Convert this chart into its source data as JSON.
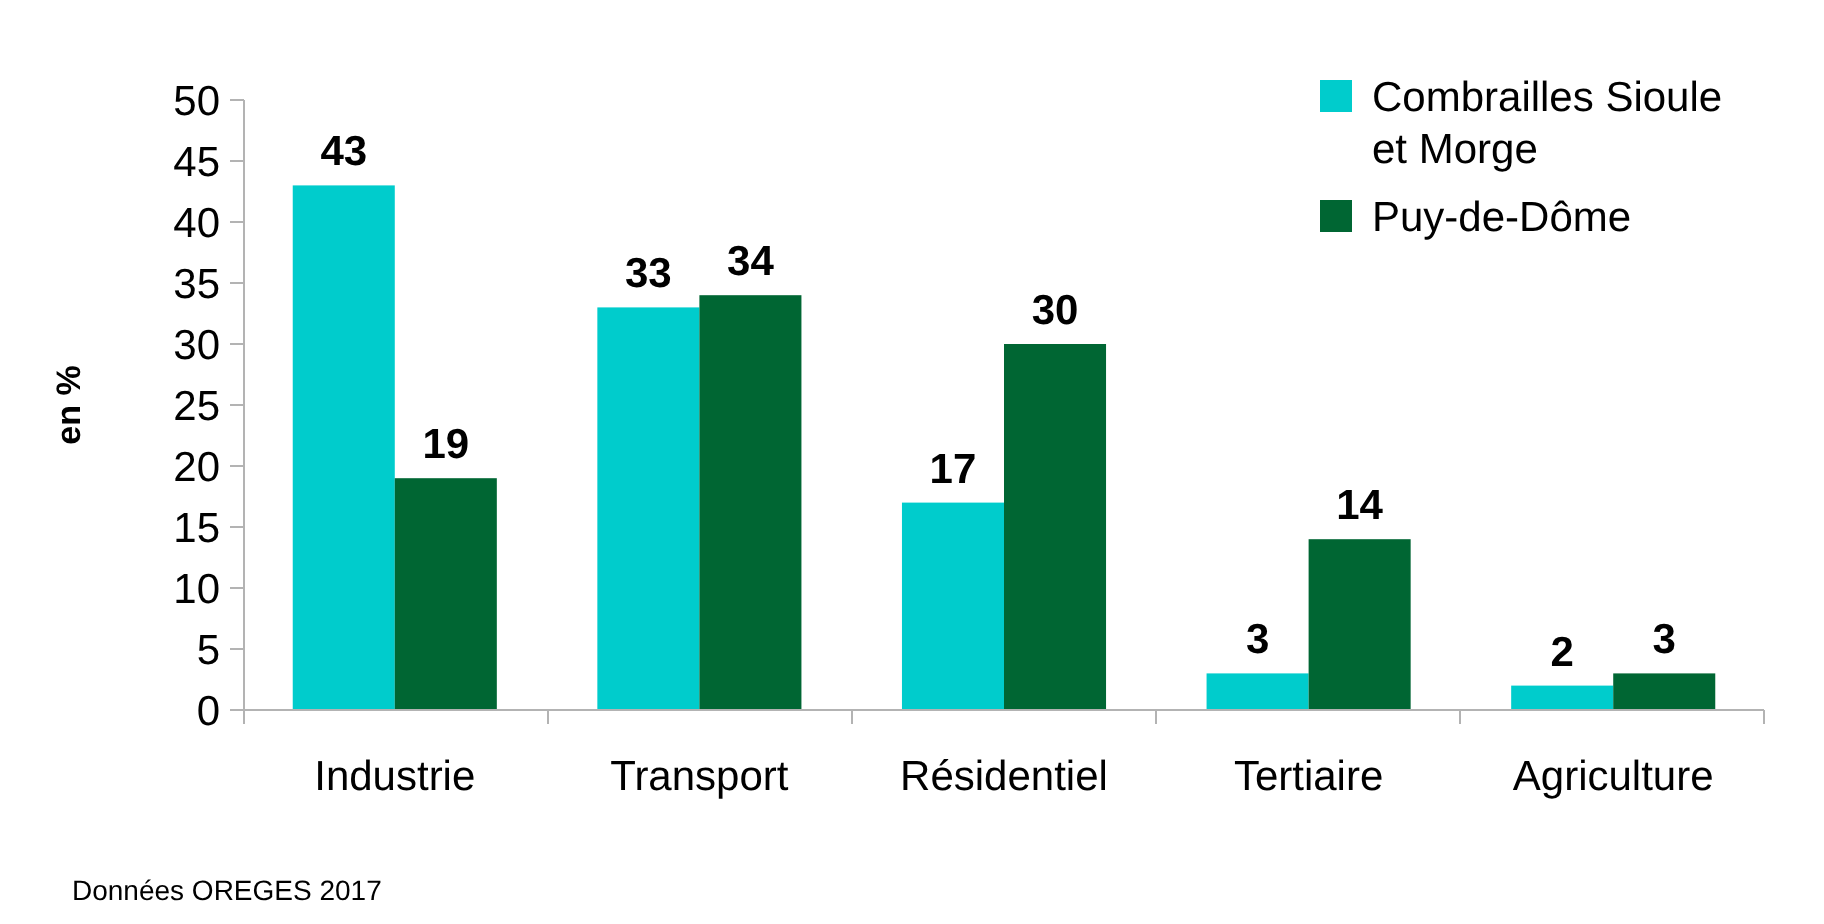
{
  "chart_data": {
    "type": "bar",
    "ylabel": "en %",
    "categories": [
      "Industrie",
      "Transport",
      "Résidentiel",
      "Tertiaire",
      "Agriculture"
    ],
    "series": [
      {
        "name": "Combrailles Sioule et Morge",
        "color": "#00cccc",
        "values": [
          43,
          33,
          17,
          3,
          2
        ]
      },
      {
        "name": "Puy-de-Dôme",
        "color": "#006633",
        "values": [
          19,
          34,
          30,
          14,
          3
        ]
      }
    ],
    "ylim": [
      0,
      50
    ],
    "yticks": [
      0,
      5,
      10,
      15,
      20,
      25,
      30,
      35,
      40,
      45,
      50
    ],
    "data_labels": true,
    "legend": "top right",
    "grid": false,
    "annotations": [
      "Données OREGES 2017"
    ]
  }
}
